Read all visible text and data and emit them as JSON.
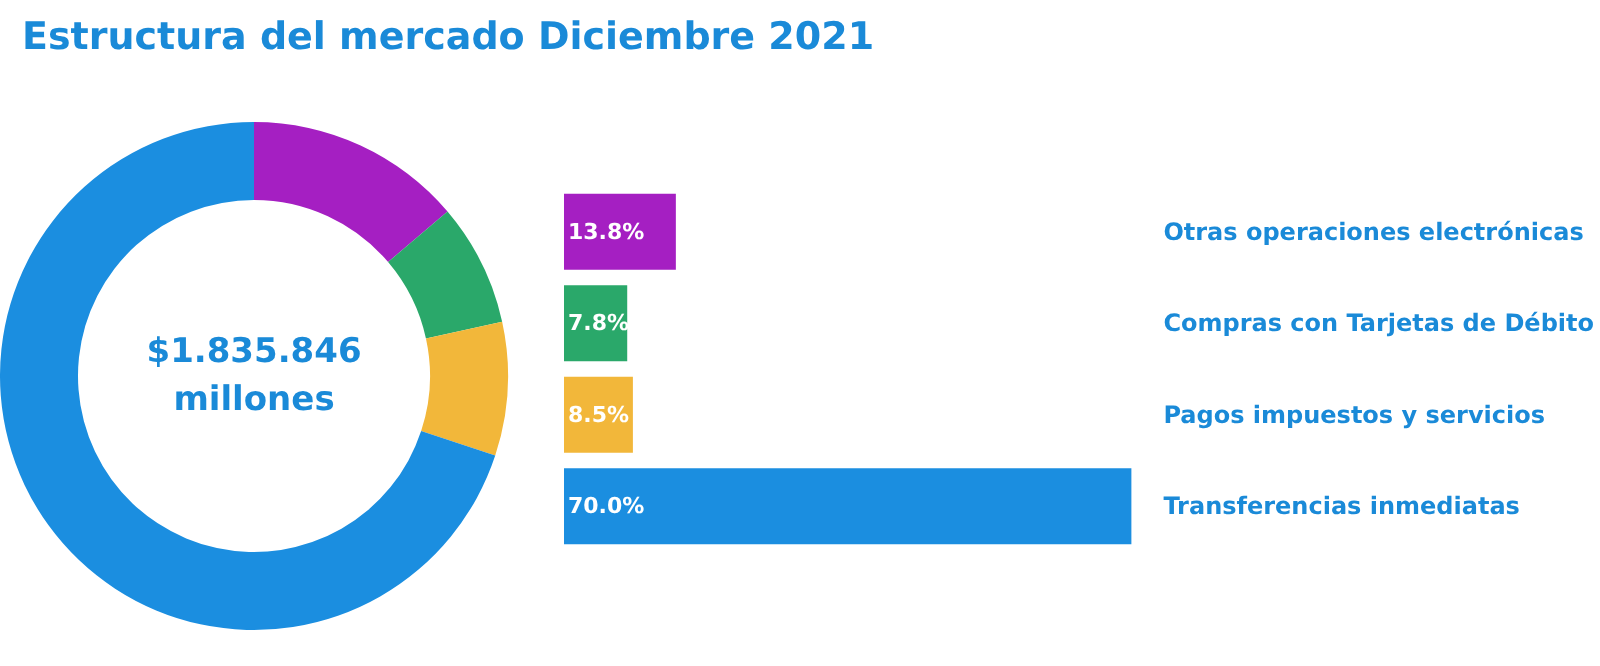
{
  "chart_data": [
    {
      "type": "donut",
      "title": "Estructura del mercado Diciembre 2021",
      "categories": [
        null,
        null,
        null,
        null
      ],
      "values": [
        13.8,
        7.8,
        8.5,
        70.0
      ],
      "colors": [
        "#a51fc2",
        "#2aa86a",
        "#f2b73a",
        "#1b8ee0"
      ],
      "annotations": [
        "$1.835.846\nmillones"
      ]
    },
    {
      "type": "bar",
      "orientation": "horizontal",
      "categories": [
        "Otras operaciones electrónicas",
        "Compras con Tarjetas de Débito",
        "Pagos impuestos y servicios",
        "Transferencias inmediatas"
      ],
      "values": [
        13.8,
        7.8,
        8.5,
        70.0
      ],
      "colors": [
        "#a51fc2",
        "#2aa86a",
        "#f2b73a",
        "#1b8ee0"
      ],
      "value_labels": [
        "13.8%",
        "7.8%",
        "8.5%",
        "70.0%"
      ]
    }
  ]
}
